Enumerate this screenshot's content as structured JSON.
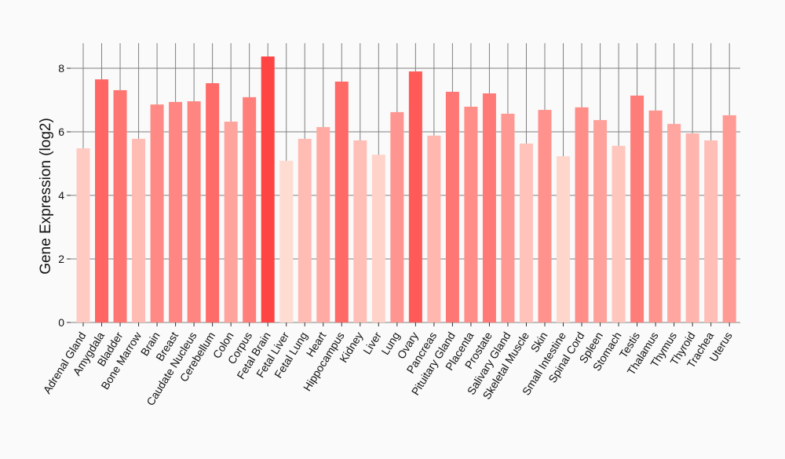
{
  "chart_data": {
    "type": "bar",
    "title": "",
    "xlabel": "",
    "ylabel": "Gene Expression (log2)",
    "ylim": [
      0,
      8.75
    ],
    "yticks": [
      0,
      2,
      4,
      6,
      8
    ],
    "grid": true,
    "color_low": "#ffdcd2",
    "color_high": "#ff4444",
    "categories": [
      "Adrenal Gland",
      "Amygdala",
      "Bladder",
      "Bone Marrow",
      "Brain",
      "Breast",
      "Caudate Nucleus",
      "Cerebellum",
      "Colon",
      "Corpus",
      "Fetal Brain",
      "Fetal Liver",
      "Fetal Lung",
      "Heart",
      "Hippocampus",
      "Kidney",
      "Liver",
      "Lung",
      "Ovary",
      "Pancreas",
      "Pituitary Gland",
      "Placenta",
      "Prostate",
      "Salivary Gland",
      "Skeletal Muscle",
      "Skin",
      "Small Intestine",
      "Spinal Cord",
      "Spleen",
      "Stomach",
      "Testis",
      "Thalamus",
      "Thymus",
      "Thyroid",
      "Trachea",
      "Uterus"
    ],
    "values": [
      5.48,
      7.65,
      7.31,
      5.78,
      6.86,
      6.94,
      6.96,
      7.53,
      6.32,
      7.09,
      8.37,
      5.09,
      5.78,
      6.15,
      7.58,
      5.73,
      5.28,
      6.62,
      7.9,
      5.88,
      7.26,
      6.79,
      7.21,
      6.57,
      5.63,
      6.69,
      5.23,
      6.77,
      6.37,
      5.56,
      7.14,
      6.67,
      6.25,
      5.95,
      5.73,
      6.52
    ]
  }
}
